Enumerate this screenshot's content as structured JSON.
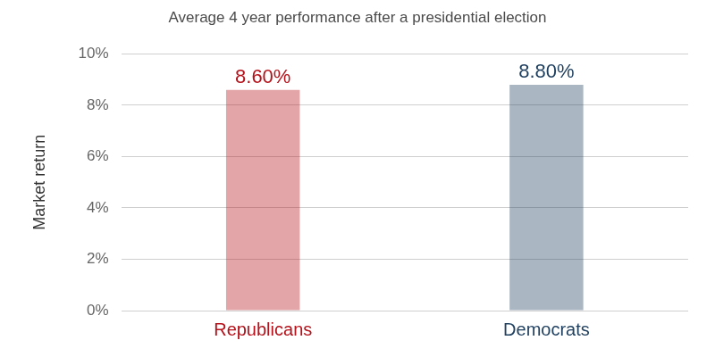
{
  "chart_data": {
    "type": "bar",
    "title": "Average 4 year performance after a presidential election",
    "y_label": "Market return",
    "categories": [
      "Republicans",
      "Democrats"
    ],
    "values": [
      8.6,
      8.8
    ],
    "value_labels": [
      "8.60%",
      "8.80%"
    ],
    "colors": [
      "#b5121b",
      "#1f3f5f"
    ],
    "ylim": [
      0,
      10
    ],
    "yticks": [
      {
        "value": 0,
        "label": "0%"
      },
      {
        "value": 2,
        "label": "2%"
      },
      {
        "value": 4,
        "label": "4%"
      },
      {
        "value": 6,
        "label": "6%"
      },
      {
        "value": 8,
        "label": "8%"
      },
      {
        "value": 10,
        "label": "10%"
      }
    ],
    "grid": true,
    "data_labels": true
  }
}
